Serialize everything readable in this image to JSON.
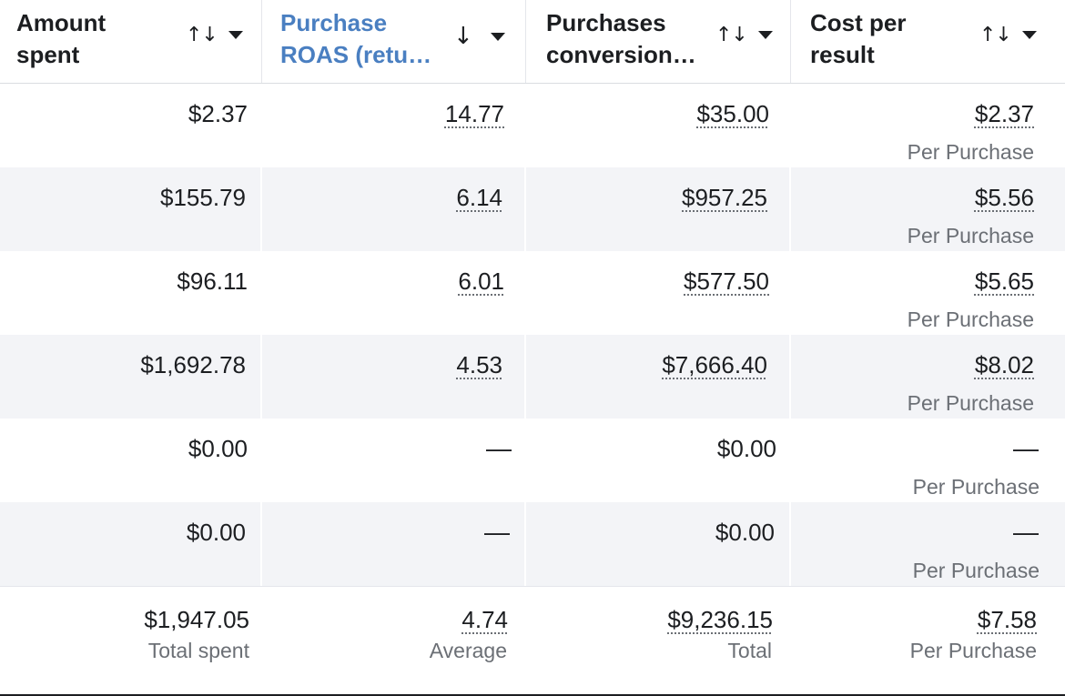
{
  "columns": [
    {
      "label": "Amount spent",
      "sort_icon": "↑↓",
      "sort_icon_name": "sort-both-icon"
    },
    {
      "label": "Purchase ROAS (retu…",
      "sort_icon": "↓",
      "sort_icon_name": "sort-descending-icon",
      "active": true,
      "color": "#4a7fc1"
    },
    {
      "label": "Purchases conversion…",
      "sort_icon": "↑↓",
      "sort_icon_name": "sort-both-icon"
    },
    {
      "label": "Cost per result",
      "sort_icon": "↑↓",
      "sort_icon_name": "sort-both-icon"
    }
  ],
  "rows": [
    {
      "amount": "$2.37",
      "roas": "14.77",
      "conversion": "$35.00",
      "cost": "$2.37",
      "cost_sub": "Per Purchase"
    },
    {
      "amount": "$155.79",
      "roas": "6.14",
      "conversion": "$957.25",
      "cost": "$5.56",
      "cost_sub": "Per Purchase"
    },
    {
      "amount": "$96.11",
      "roas": "6.01",
      "conversion": "$577.50",
      "cost": "$5.65",
      "cost_sub": "Per Purchase"
    },
    {
      "amount": "$1,692.78",
      "roas": "4.53",
      "conversion": "$7,666.40",
      "cost": "$8.02",
      "cost_sub": "Per Purchase"
    },
    {
      "amount": "$0.00",
      "roas": "—",
      "conversion": "$0.00",
      "cost": "—",
      "cost_sub": "Per Purchase"
    },
    {
      "amount": "$0.00",
      "roas": "—",
      "conversion": "$0.00",
      "cost": "—",
      "cost_sub": "Per Purchase"
    }
  ],
  "totals": {
    "amount": "$1,947.05",
    "amount_sub": "Total spent",
    "roas": "4.74",
    "roas_sub": "Average",
    "conversion": "$9,236.15",
    "conversion_sub": "Total",
    "cost": "$7.58",
    "cost_sub": "Per Purchase"
  },
  "colors": {
    "row_alt_bg": "#f3f4f7",
    "active_header": "#4a7fc1",
    "muted_text": "#6b6f75"
  }
}
